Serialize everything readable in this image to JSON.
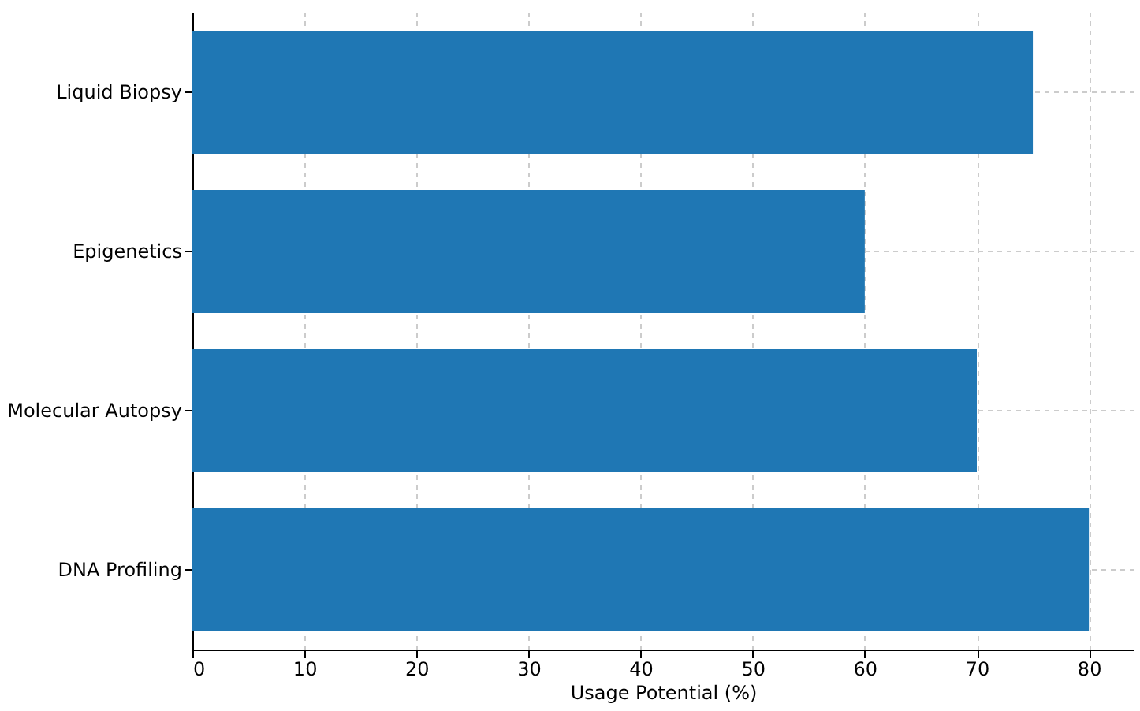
{
  "chart_data": {
    "type": "bar",
    "orientation": "horizontal",
    "xlabel": "Usage Potential (%)",
    "categories": [
      "Liquid Biopsy",
      "Epigenetics",
      "Molecular Autopsy",
      "DNA Profiling"
    ],
    "values": [
      75,
      60,
      70,
      80
    ],
    "color": "#1f77b4",
    "xlim": [
      0,
      84
    ],
    "xticks": [
      0,
      10,
      20,
      30,
      40,
      50,
      60,
      70,
      80
    ],
    "grid": true
  }
}
